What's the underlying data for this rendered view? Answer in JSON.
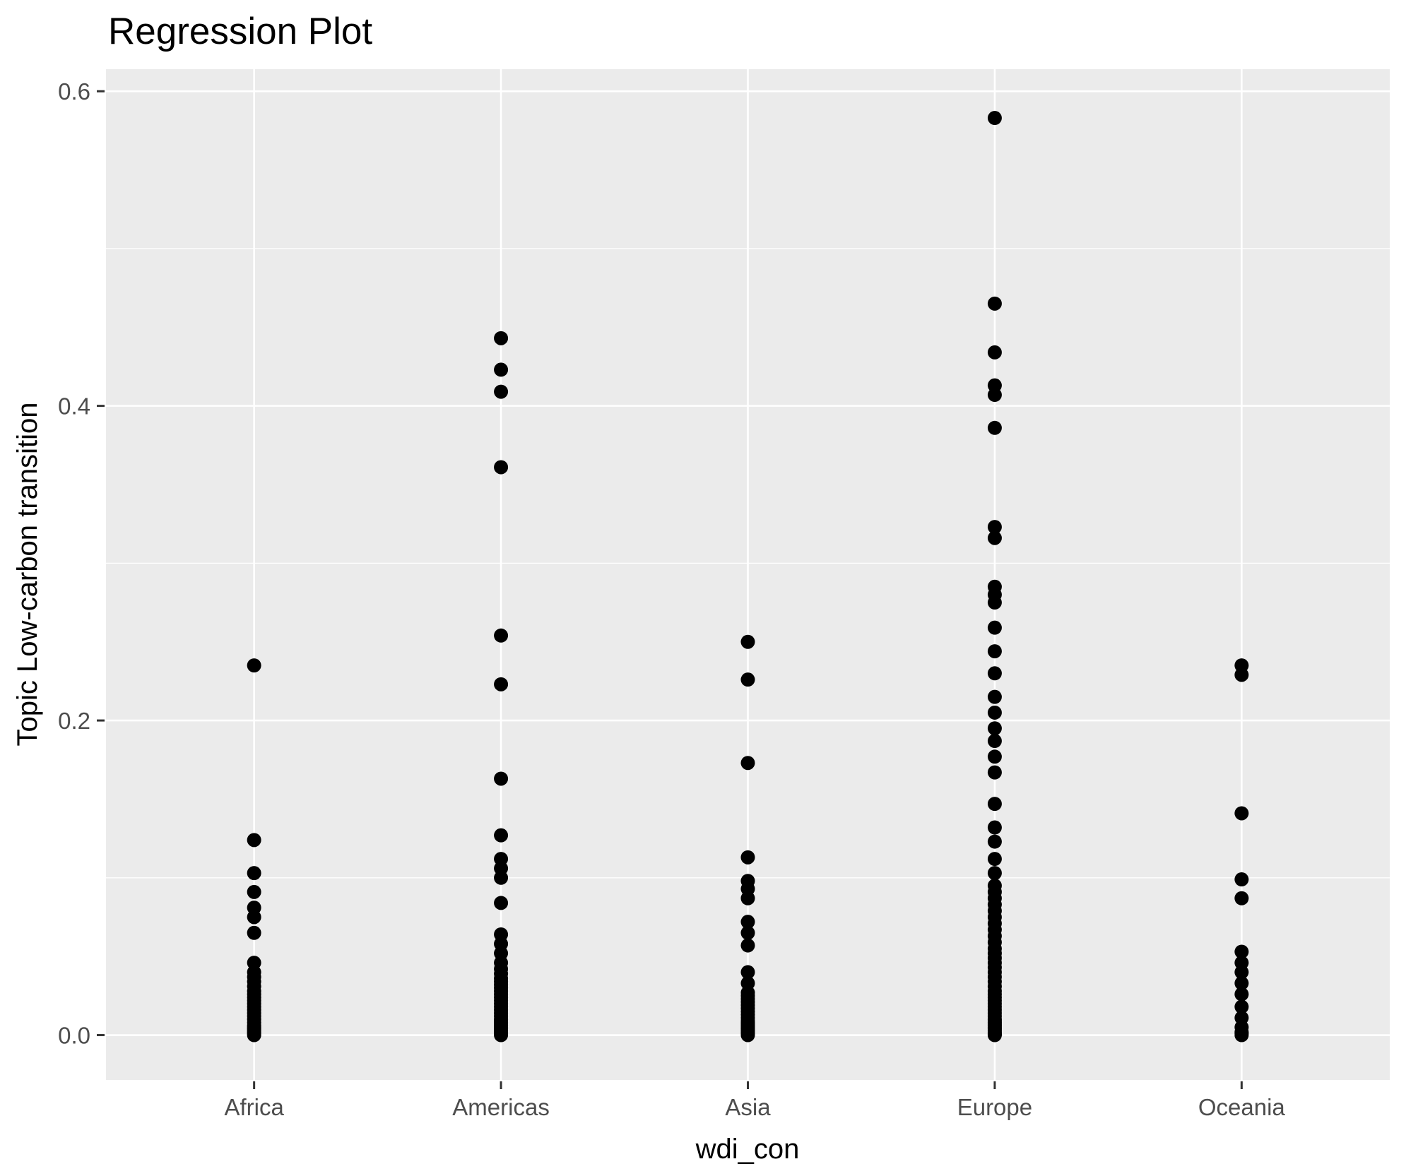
{
  "chart_data": {
    "type": "scatter",
    "title": "Regression Plot",
    "xlabel": "wdi_con",
    "ylabel": "Topic Low-carbon transition",
    "categories": [
      "Africa",
      "Americas",
      "Asia",
      "Europe",
      "Oceania"
    ],
    "y_tick_values": [
      0.0,
      0.2,
      0.4,
      0.6
    ],
    "y_tick_labels": [
      "0.0",
      "0.2",
      "0.4",
      "0.6"
    ],
    "y_minor_values": [
      0.1,
      0.3,
      0.5
    ],
    "ylim": [
      -0.0285,
      0.614
    ],
    "grid": true,
    "legend": false,
    "colors": {
      "panel_bg": "#EBEBEB",
      "grid": "#FFFFFF",
      "point": "#000000",
      "tick_text": "#4D4D4D",
      "tick_mark": "#333333",
      "title_text": "#000000"
    },
    "series": [
      {
        "name": "Africa",
        "values": [
          0.235,
          0.124,
          0.103,
          0.091,
          0.081,
          0.075,
          0.065,
          0.046,
          0.04,
          0.037,
          0.034,
          0.031,
          0.028,
          0.026,
          0.024,
          0.022,
          0.02,
          0.018,
          0.016,
          0.014,
          0.012,
          0.01,
          0.008,
          0.006,
          0.005,
          0.004,
          0.003,
          0.002,
          0.001,
          0.0
        ]
      },
      {
        "name": "Americas",
        "values": [
          0.443,
          0.423,
          0.409,
          0.361,
          0.254,
          0.223,
          0.163,
          0.127,
          0.112,
          0.106,
          0.1,
          0.084,
          0.064,
          0.058,
          0.052,
          0.046,
          0.042,
          0.039,
          0.036,
          0.034,
          0.032,
          0.03,
          0.028,
          0.026,
          0.024,
          0.022,
          0.02,
          0.018,
          0.016,
          0.014,
          0.012,
          0.01,
          0.009,
          0.008,
          0.007,
          0.006,
          0.005,
          0.004,
          0.003,
          0.002,
          0.001,
          0.0
        ]
      },
      {
        "name": "Asia",
        "values": [
          0.25,
          0.226,
          0.173,
          0.113,
          0.098,
          0.093,
          0.087,
          0.072,
          0.065,
          0.057,
          0.04,
          0.033,
          0.027,
          0.025,
          0.023,
          0.021,
          0.019,
          0.017,
          0.015,
          0.013,
          0.011,
          0.009,
          0.008,
          0.007,
          0.006,
          0.005,
          0.004,
          0.003,
          0.002,
          0.001,
          0.0
        ]
      },
      {
        "name": "Europe",
        "values": [
          0.583,
          0.465,
          0.434,
          0.413,
          0.407,
          0.386,
          0.323,
          0.316,
          0.285,
          0.28,
          0.275,
          0.259,
          0.244,
          0.23,
          0.215,
          0.205,
          0.195,
          0.187,
          0.177,
          0.167,
          0.147,
          0.132,
          0.123,
          0.112,
          0.103,
          0.095,
          0.091,
          0.087,
          0.083,
          0.079,
          0.075,
          0.071,
          0.067,
          0.063,
          0.059,
          0.055,
          0.052,
          0.049,
          0.046,
          0.043,
          0.04,
          0.037,
          0.034,
          0.031,
          0.028,
          0.026,
          0.024,
          0.022,
          0.02,
          0.018,
          0.016,
          0.014,
          0.012,
          0.01,
          0.009,
          0.008,
          0.007,
          0.006,
          0.005,
          0.004,
          0.003,
          0.002,
          0.001,
          0.0005,
          0.0
        ]
      },
      {
        "name": "Oceania",
        "values": [
          0.235,
          0.229,
          0.141,
          0.099,
          0.087,
          0.053,
          0.046,
          0.04,
          0.033,
          0.026,
          0.018,
          0.011,
          0.005,
          0.002,
          0.001,
          0.0
        ]
      }
    ]
  }
}
